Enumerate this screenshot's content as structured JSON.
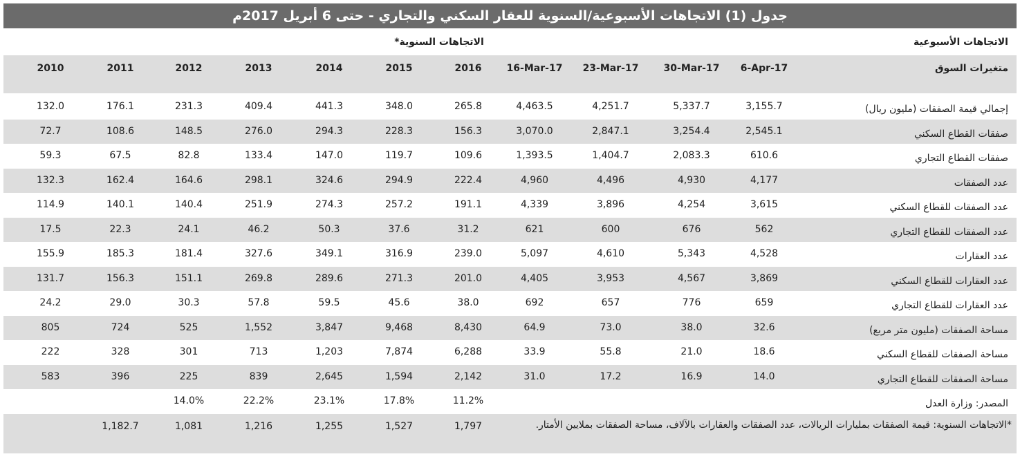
{
  "title": "جدول (1) الاتجاهات الأسبوعية/السنوية للعقار السكني والتجاري - حتى 6 أبريل 2017م",
  "weekly_heading": "الاتجاهات الأسبوعية",
  "annual_heading": "الاتجاهات السنوية*",
  "table": {
    "columns": [
      "متغيرات السوق",
      "6-Apr-17",
      "30-Mar-17",
      "23-Mar-17",
      "16-Mar-17",
      "2016",
      "2015",
      "2014",
      "2013",
      "2012",
      "2011",
      "2010"
    ],
    "rows": [
      [
        "إجمالي قيمة الصفقات (مليون ريال)",
        "3,155.7",
        "5,337.7",
        "4,251.7",
        "4,463.5",
        "265.8",
        "348.0",
        "441.3",
        "409.4",
        "231.3",
        "176.1",
        "132.0"
      ],
      [
        "صفقات القطاع السكني",
        "2,545.1",
        "3,254.4",
        "2,847.1",
        "3,070.0",
        "156.3",
        "228.3",
        "294.3",
        "276.0",
        "148.5",
        "108.6",
        "72.7"
      ],
      [
        "صفقات القطاع التجاري",
        "610.6",
        "2,083.3",
        "1,404.7",
        "1,393.5",
        "109.6",
        "119.7",
        "147.0",
        "133.4",
        "82.8",
        "67.5",
        "59.3"
      ],
      [
        "عدد الصفقات",
        "4,177",
        "4,930",
        "4,496",
        "4,960",
        "222.4",
        "294.9",
        "324.6",
        "298.1",
        "164.6",
        "162.4",
        "132.3"
      ],
      [
        "عدد الصفقات للقطاع السكني",
        "3,615",
        "4,254",
        "3,896",
        "4,339",
        "191.1",
        "257.2",
        "274.3",
        "251.9",
        "140.4",
        "140.1",
        "114.9"
      ],
      [
        "عدد الصفقات للقطاع التجاري",
        "562",
        "676",
        "600",
        "621",
        "31.2",
        "37.6",
        "50.3",
        "46.2",
        "24.1",
        "22.3",
        "17.5"
      ],
      [
        "عدد العقارات",
        "4,528",
        "5,343",
        "4,610",
        "5,097",
        "239.0",
        "316.9",
        "349.1",
        "327.6",
        "181.4",
        "185.3",
        "155.9"
      ],
      [
        "عدد العقارات للقطاع السكني",
        "3,869",
        "4,567",
        "3,953",
        "4,405",
        "201.0",
        "271.3",
        "289.6",
        "269.8",
        "151.1",
        "156.3",
        "131.7"
      ],
      [
        "عدد العقارات للقطاع التجاري",
        "659",
        "776",
        "657",
        "692",
        "38.0",
        "45.6",
        "59.5",
        "57.8",
        "30.3",
        "29.0",
        "24.2"
      ],
      [
        "مساحة الصفقات (مليون متر مربع)",
        "32.6",
        "38.0",
        "73.0",
        "64.9",
        "8,430",
        "9,468",
        "3,847",
        "1,552",
        "525",
        "724",
        "805"
      ],
      [
        "مساحة الصفقات للقطاع السكني",
        "18.6",
        "21.0",
        "55.8",
        "33.9",
        "6,288",
        "7,874",
        "1,203",
        "713",
        "301",
        "328",
        "222"
      ],
      [
        "مساحة الصفقات للقطاع التجاري",
        "14.0",
        "16.9",
        "17.2",
        "31.0",
        "2,142",
        "1,594",
        "2,645",
        "839",
        "225",
        "396",
        "583"
      ]
    ]
  },
  "source": {
    "label": "المصدر: وزارة العدل",
    "values": [
      "11.2%",
      "17.8%",
      "23.1%",
      "22.2%",
      "14.0%"
    ]
  },
  "footnote": {
    "text": "*الاتجاهات السنوية: قيمة الصفقات بمليارات الريالات، عدد الصفقات والعقارات بالآلاف، مساحة الصفقات بملايين الأمتار.",
    "values": [
      "1,797",
      "1,527",
      "1,255",
      "1,216",
      "1,081",
      "1,182.7"
    ]
  }
}
